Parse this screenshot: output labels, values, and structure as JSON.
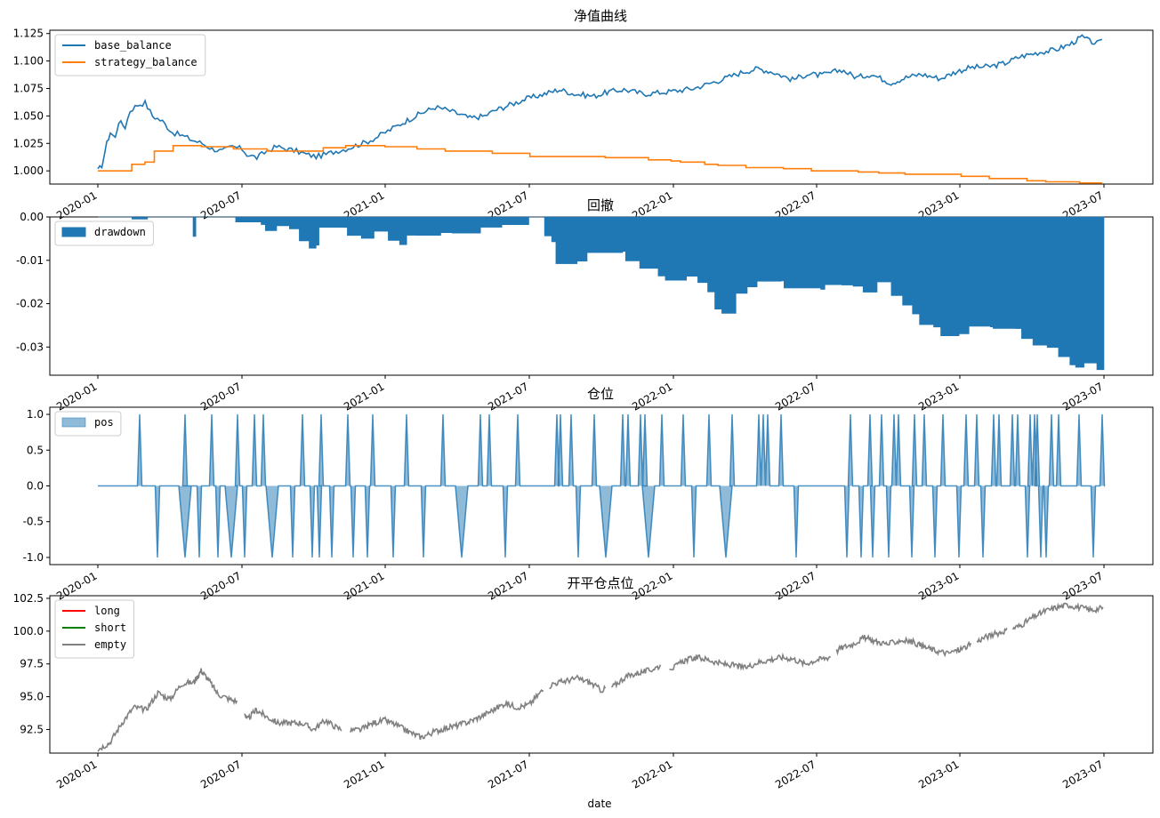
{
  "figure": {
    "xlabel": "date"
  },
  "chart_data": [
    {
      "type": "line",
      "title": "净值曲线",
      "ylim": [
        0.988,
        1.128
      ],
      "yticks": [
        "1.000",
        "1.025",
        "1.050",
        "1.075",
        "1.100",
        "1.125"
      ],
      "xticks": [
        "2020-01",
        "2020-07",
        "2021-01",
        "2021-07",
        "2022-01",
        "2022-07",
        "2023-01",
        "2023-07"
      ],
      "legend": "top-left",
      "series": [
        {
          "name": "base_balance",
          "color": "#1f77b4",
          "points": [
            [
              0,
              1.0
            ],
            [
              0.08,
              1.005
            ],
            [
              0.18,
              1.025
            ],
            [
              0.25,
              1.035
            ],
            [
              0.35,
              1.03
            ],
            [
              0.42,
              1.045
            ],
            [
              0.55,
              1.04
            ],
            [
              0.65,
              1.055
            ],
            [
              0.8,
              1.06
            ],
            [
              0.95,
              1.062
            ],
            [
              1.1,
              1.05
            ],
            [
              1.3,
              1.045
            ],
            [
              1.5,
              1.035
            ],
            [
              1.7,
              1.032
            ],
            [
              1.9,
              1.028
            ],
            [
              2.1,
              1.025
            ],
            [
              2.3,
              1.02
            ],
            [
              2.5,
              1.018
            ],
            [
              2.7,
              1.022
            ],
            [
              2.9,
              1.02
            ],
            [
              3.0,
              1.015
            ],
            [
              3.2,
              1.012
            ],
            [
              3.4,
              1.018
            ],
            [
              3.6,
              1.022
            ],
            [
              3.8,
              1.02
            ],
            [
              4.0,
              1.018
            ],
            [
              4.2,
              1.015
            ],
            [
              4.4,
              1.013
            ],
            [
              4.6,
              1.015
            ],
            [
              4.8,
              1.018
            ],
            [
              5.0,
              1.02
            ],
            [
              5.2,
              1.023
            ],
            [
              5.4,
              1.026
            ],
            [
              5.6,
              1.03
            ],
            [
              5.8,
              1.035
            ],
            [
              6.0,
              1.04
            ],
            [
              6.2,
              1.045
            ],
            [
              6.5,
              1.052
            ],
            [
              6.8,
              1.058
            ],
            [
              7.0,
              1.056
            ],
            [
              7.2,
              1.053
            ],
            [
              7.5,
              1.048
            ],
            [
              7.8,
              1.05
            ],
            [
              8.0,
              1.055
            ],
            [
              8.3,
              1.06
            ],
            [
              8.6,
              1.065
            ],
            [
              9.0,
              1.07
            ],
            [
              9.3,
              1.074
            ],
            [
              9.6,
              1.07
            ],
            [
              10.0,
              1.068
            ],
            [
              10.3,
              1.072
            ],
            [
              10.6,
              1.074
            ],
            [
              11.0,
              1.07
            ],
            [
              11.5,
              1.072
            ],
            [
              12.0,
              1.075
            ],
            [
              12.5,
              1.082
            ],
            [
              13.0,
              1.09
            ],
            [
              13.3,
              1.093
            ],
            [
              13.6,
              1.09
            ],
            [
              14.0,
              1.083
            ],
            [
              14.3,
              1.088
            ],
            [
              14.6,
              1.087
            ],
            [
              15.0,
              1.092
            ],
            [
              15.3,
              1.085
            ],
            [
              15.6,
              1.088
            ],
            [
              16.0,
              1.08
            ],
            [
              16.3,
              1.085
            ],
            [
              16.6,
              1.088
            ],
            [
              17.0,
              1.084
            ],
            [
              17.3,
              1.09
            ],
            [
              17.6,
              1.094
            ],
            [
              18.0,
              1.095
            ],
            [
              18.3,
              1.098
            ],
            [
              18.6,
              1.104
            ],
            [
              19.0,
              1.108
            ],
            [
              19.3,
              1.11
            ],
            [
              19.6,
              1.115
            ],
            [
              19.85,
              1.122
            ],
            [
              20.0,
              1.118
            ],
            [
              20.15,
              1.116
            ],
            [
              20.3,
              1.118
            ]
          ]
        },
        {
          "name": "strategy_balance",
          "color": "#ff7f0e",
          "points": [
            [
              0,
              1.0
            ],
            [
              1.8,
              1.0
            ],
            [
              1.8,
              1.006
            ],
            [
              2.5,
              1.008
            ],
            [
              3.0,
              1.018
            ],
            [
              4.0,
              1.023
            ],
            [
              5.5,
              1.022
            ],
            [
              7.2,
              1.02
            ],
            [
              9.0,
              1.018
            ],
            [
              12.0,
              1.021
            ],
            [
              13.2,
              1.023
            ],
            [
              14.0,
              1.023
            ],
            [
              15.3,
              1.022
            ],
            [
              16.5,
              1.022
            ],
            [
              17.0,
              1.02
            ],
            [
              18.5,
              1.018
            ],
            [
              21.0,
              1.016
            ],
            [
              23.0,
              1.013
            ],
            [
              27.0,
              1.012
            ],
            [
              29.3,
              1.01
            ],
            [
              30.5,
              1.009
            ],
            [
              31.0,
              1.008
            ],
            [
              32.3,
              1.006
            ],
            [
              33.0,
              1.005
            ],
            [
              34.5,
              1.003
            ],
            [
              36.5,
              1.002
            ],
            [
              38.0,
              1.0
            ],
            [
              40.5,
              0.999
            ],
            [
              41.6,
              0.998
            ],
            [
              43.0,
              0.997
            ],
            [
              45.0,
              0.997
            ],
            [
              46.0,
              0.995
            ],
            [
              47.5,
              0.993
            ],
            [
              49.5,
              0.991
            ],
            [
              50.5,
              0.99
            ],
            [
              52.3,
              0.989
            ],
            [
              53.5,
              0.989
            ]
          ]
        }
      ]
    },
    {
      "type": "area",
      "title": "回撤",
      "ylim": [
        -0.0365,
        0.0
      ],
      "yticks": [
        "0.00",
        "-0.01",
        "-0.02",
        "-0.03"
      ],
      "xticks": [
        "2020-01",
        "2020-07",
        "2021-01",
        "2021-07",
        "2022-01",
        "2022-07",
        "2023-01",
        "2023-07"
      ],
      "legend": "top-left",
      "series": [
        {
          "name": "drawdown",
          "color": "#1f77b4"
        }
      ]
    },
    {
      "type": "area",
      "title": "仓位",
      "ylim": [
        -1.1,
        1.1
      ],
      "yticks": [
        "1.0",
        "0.5",
        "0.0",
        "-0.5",
        "-1.0"
      ],
      "xticks": [
        "2020-01",
        "2020-07",
        "2021-01",
        "2021-07",
        "2022-01",
        "2022-07",
        "2023-01",
        "2023-07"
      ],
      "legend": "top-left",
      "series": [
        {
          "name": "pos",
          "color": "#1f77b4"
        }
      ]
    },
    {
      "type": "line",
      "title": "开平仓点位",
      "ylim": [
        90.7,
        102.7
      ],
      "yticks": [
        "102.5",
        "100.0",
        "97.5",
        "95.0",
        "92.5"
      ],
      "xticks": [
        "2020-01",
        "2020-07",
        "2021-01",
        "2021-07",
        "2022-01",
        "2022-07",
        "2023-01",
        "2023-07"
      ],
      "xlabel": "date",
      "legend": "top-left",
      "series": [
        {
          "name": "long",
          "color": "#ff0000"
        },
        {
          "name": "short",
          "color": "#008000"
        },
        {
          "name": "empty",
          "color": "#808080"
        }
      ]
    }
  ]
}
